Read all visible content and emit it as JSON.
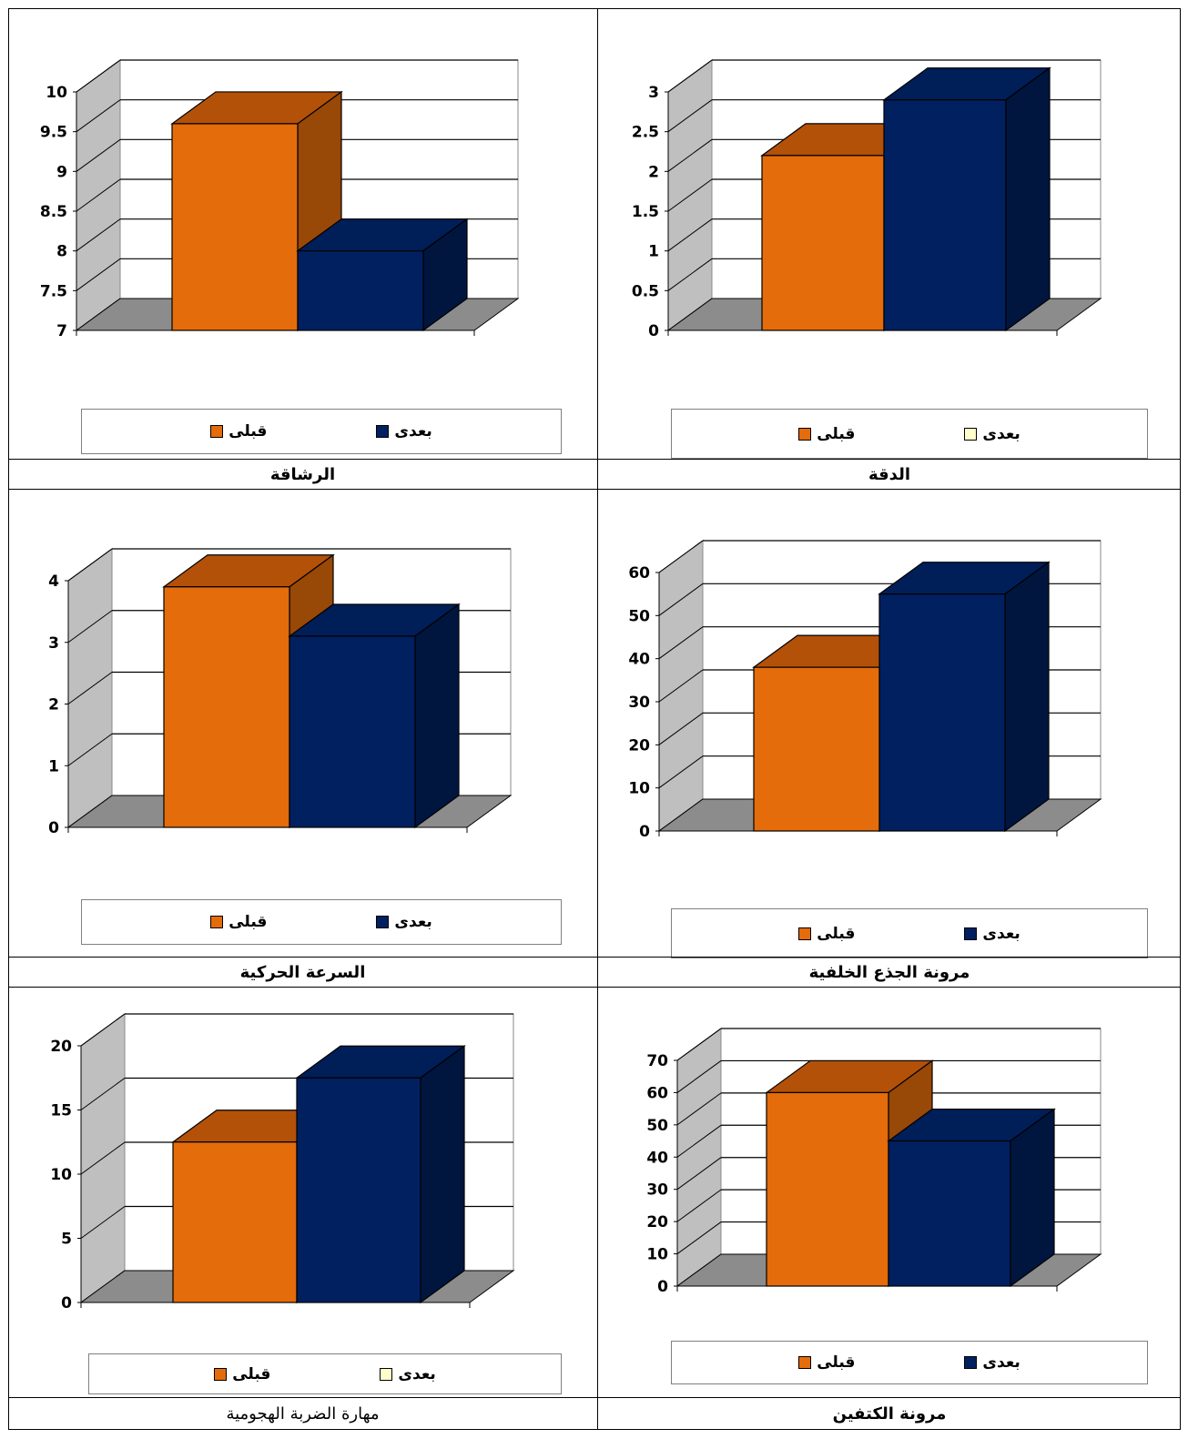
{
  "colors": {
    "before_front": "#E46C0A",
    "before_top": "#B35109",
    "before_side": "#984807",
    "after_front": "#002060",
    "after_top": "#001E58",
    "after_side": "#00163F",
    "floor": "#8C8C8C",
    "wall": "#BFBFBF",
    "after_alt_swatch": "#FFFFCC"
  },
  "chart_data": [
    {
      "id": "agility",
      "type": "bar",
      "title": "الرشاقة",
      "title_bold": true,
      "categories": [
        "قبلى",
        "بعدى"
      ],
      "values": [
        9.6,
        8.0
      ],
      "ylim": [
        7,
        10
      ],
      "yticks": [
        "7",
        "7.5",
        "8",
        "8.5",
        "9",
        "9.5",
        "10"
      ],
      "legend": {
        "before": "قبلى",
        "after": "بعدى",
        "after_swatch": "blue"
      }
    },
    {
      "id": "accuracy",
      "type": "bar",
      "title": "الدقة",
      "title_bold": true,
      "categories": [
        "قبلى",
        "بعدى"
      ],
      "values": [
        2.2,
        2.9
      ],
      "ylim": [
        0,
        3
      ],
      "yticks": [
        "0",
        "0.5",
        "1",
        "1.5",
        "2",
        "2.5",
        "3"
      ],
      "legend": {
        "before": "قبلى",
        "after": "بعدى",
        "after_swatch": "pale"
      }
    },
    {
      "id": "speed",
      "type": "bar",
      "title": "السرعة الحركية",
      "title_bold": true,
      "categories": [
        "قبلى",
        "بعدى"
      ],
      "values": [
        3.9,
        3.1
      ],
      "ylim": [
        0,
        4
      ],
      "yticks": [
        "0",
        "1",
        "2",
        "3",
        "4"
      ],
      "legend": {
        "before": "قبلى",
        "after": "بعدى",
        "after_swatch": "blue"
      }
    },
    {
      "id": "trunk",
      "type": "bar",
      "title": "مرونة الجذع الخلفية",
      "title_bold": true,
      "categories": [
        "قبلى",
        "بعدى"
      ],
      "values": [
        38,
        55
      ],
      "ylim": [
        0,
        60
      ],
      "yticks": [
        "0",
        "10",
        "20",
        "30",
        "40",
        "50",
        "60"
      ],
      "legend": {
        "before": "قبلى",
        "after": "بعدى",
        "after_swatch": "blue"
      }
    },
    {
      "id": "spike",
      "type": "bar",
      "title": "مهارة الضربة الهجومية",
      "title_bold": false,
      "categories": [
        "قبلى",
        "بعدى"
      ],
      "values": [
        12.5,
        17.5
      ],
      "ylim": [
        0,
        20
      ],
      "yticks": [
        "0",
        "5",
        "10",
        "15",
        "20"
      ],
      "legend": {
        "before": "قبلى",
        "after": "بعدى",
        "after_swatch": "pale"
      }
    },
    {
      "id": "shoulder",
      "type": "bar",
      "title": "مرونة الكتفين",
      "title_bold": true,
      "categories": [
        "قبلى",
        "بعدى"
      ],
      "values": [
        60,
        45
      ],
      "ylim": [
        0,
        70
      ],
      "yticks": [
        "0",
        "10",
        "20",
        "30",
        "40",
        "50",
        "60",
        "70"
      ],
      "legend": {
        "before": "قبلى",
        "after": "بعدى",
        "after_swatch": "blue"
      }
    }
  ]
}
